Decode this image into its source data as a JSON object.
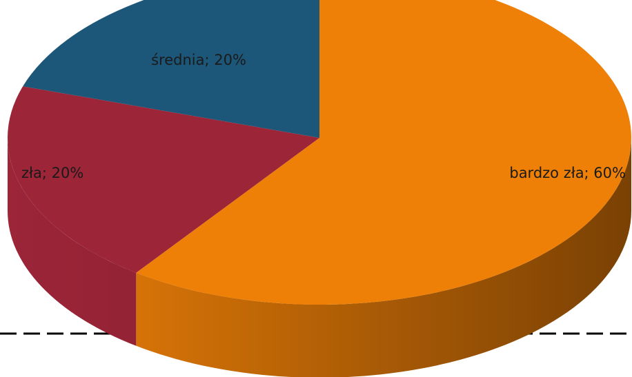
{
  "chart_data": {
    "type": "pie",
    "style": "3d",
    "categories": [
      "bardzo zła",
      "zła",
      "średnia"
    ],
    "values": [
      60,
      20,
      20
    ],
    "labels": [
      "bardzo zła; 60%",
      "zła; 20%",
      "średnia; 20%"
    ],
    "colors": [
      "#EE8008",
      "#9C2538",
      "#1C5779"
    ],
    "side_colors": [
      "#7A4104",
      "#731A29",
      "#123C54"
    ],
    "title": "",
    "legend": "none",
    "baseline": "dashed"
  }
}
